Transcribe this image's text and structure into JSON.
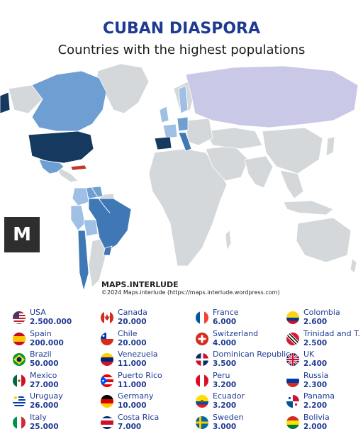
{
  "title": "CUBAN DIASPORA",
  "subtitle": "Countries with the highest populations",
  "logo_text": "M",
  "brand": "MAPS.INTERLUDE",
  "copyright": "©2024 Maps.interlude (https://maps.interlude.wordpress.com)",
  "colors": {
    "title": "#1f3a93",
    "land": "#d4d8da",
    "tier_1": "#163a5f",
    "tier_2": "#3f78b5",
    "tier_3": "#6f9fd2",
    "tier_4": "#9fc0e4",
    "tier_5": "#c9c8e6"
  },
  "legend": [
    {
      "name": "USA",
      "value": "2.500.000",
      "flag": "usa"
    },
    {
      "name": "Spain",
      "value": "200.000",
      "flag": "spain"
    },
    {
      "name": "Brazil",
      "value": "50.000",
      "flag": "brazil"
    },
    {
      "name": "Mexico",
      "value": "27.000",
      "flag": "mexico"
    },
    {
      "name": "Uruguay",
      "value": "26.000",
      "flag": "uruguay"
    },
    {
      "name": "Italy",
      "value": "25.000",
      "flag": "italy"
    },
    {
      "name": "Canada",
      "value": "20.000",
      "flag": "canada"
    },
    {
      "name": "Chile",
      "value": "20.000",
      "flag": "chile"
    },
    {
      "name": "Venezuela",
      "value": "11.000",
      "flag": "venezuela"
    },
    {
      "name": "Puerto Rico",
      "value": "11.000",
      "flag": "puerto-rico"
    },
    {
      "name": "Germany",
      "value": "10.000",
      "flag": "germany"
    },
    {
      "name": "Costa Rica",
      "value": "7.000",
      "flag": "costa-rica"
    },
    {
      "name": "France",
      "value": "6.000",
      "flag": "france"
    },
    {
      "name": "Switzerland",
      "value": "4.000",
      "flag": "switzerland"
    },
    {
      "name": "Dominican Republic",
      "value": "3.500",
      "flag": "dominican-republic"
    },
    {
      "name": "Peru",
      "value": "3.200",
      "flag": "peru"
    },
    {
      "name": "Ecuador",
      "value": "3.200",
      "flag": "ecuador"
    },
    {
      "name": "Sweden",
      "value": "3.000",
      "flag": "sweden"
    },
    {
      "name": "Colombia",
      "value": "2.600",
      "flag": "colombia"
    },
    {
      "name": "Trinidad and T.",
      "value": "2.500",
      "flag": "trinidad"
    },
    {
      "name": "UK",
      "value": "2.400",
      "flag": "uk"
    },
    {
      "name": "Russia",
      "value": "2.300",
      "flag": "russia"
    },
    {
      "name": "Panama",
      "value": "2.200",
      "flag": "panama"
    },
    {
      "name": "Bolivia",
      "value": "2.000",
      "flag": "bolivia"
    }
  ]
}
